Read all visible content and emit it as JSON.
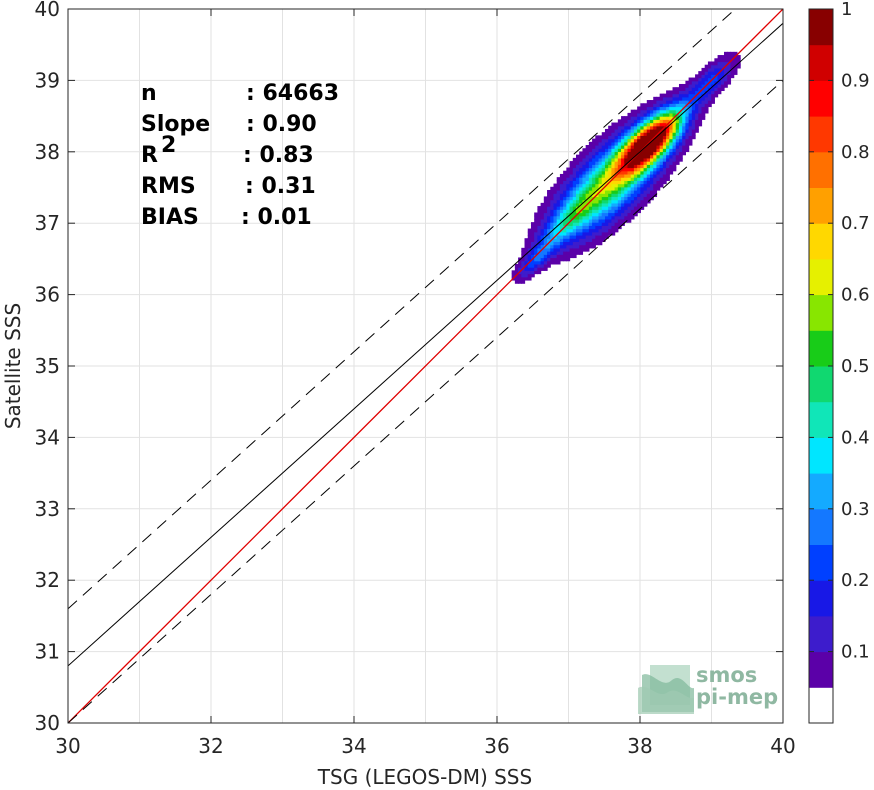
{
  "chart_data": {
    "type": "heatmap",
    "xlabel": "TSG (LEGOS-DM) SSS",
    "ylabel": "Satellite SSS",
    "xlim": [
      30,
      40
    ],
    "ylim": [
      30,
      40
    ],
    "xticks": [
      "30",
      "32",
      "34",
      "36",
      "38",
      "40"
    ],
    "yticks": [
      "30",
      "31",
      "32",
      "33",
      "34",
      "35",
      "36",
      "37",
      "38",
      "39",
      "40"
    ],
    "grid": true,
    "stats": [
      {
        "label": "n",
        "value": ": 64663"
      },
      {
        "label": "Slope",
        "value": ": 0.90"
      },
      {
        "label": "R",
        "sup": "2",
        "value": ": 0.83"
      },
      {
        "label": "RMS",
        "value": ": 0.31"
      },
      {
        "label": "BIAS",
        "value": ": 0.01"
      }
    ],
    "identity_line": {
      "slope": 1,
      "intercept": 0,
      "color": "#e00000"
    },
    "regression_line": {
      "slope": 0.9,
      "intercept": 3.8,
      "color": "#000000"
    },
    "envelope_offset": 0.8,
    "density_peaks": [
      {
        "x": 38.15,
        "y": 38.15,
        "weight": 1.0,
        "sx": 0.3,
        "sy": 0.25
      },
      {
        "x": 37.6,
        "y": 37.6,
        "weight": 0.55,
        "sx": 0.55,
        "sy": 0.45
      },
      {
        "x": 37.0,
        "y": 37.05,
        "weight": 0.22,
        "sx": 0.3,
        "sy": 0.2
      },
      {
        "x": 39.0,
        "y": 39.0,
        "weight": 0.2,
        "sx": 0.25,
        "sy": 0.2
      },
      {
        "x": 36.55,
        "y": 36.5,
        "weight": 0.18,
        "sx": 0.2,
        "sy": 0.14
      }
    ],
    "colorbar": {
      "ticks": [
        "0.1",
        "0.2",
        "0.3",
        "0.4",
        "0.5",
        "0.6",
        "0.7",
        "0.8",
        "0.9",
        "1"
      ],
      "colors": [
        "#ffffff",
        "#5b00a8",
        "#3d1ccc",
        "#1818e6",
        "#0040ff",
        "#1478ff",
        "#14aaff",
        "#00e6ff",
        "#10e6b8",
        "#10d870",
        "#18cc18",
        "#88e600",
        "#e6f000",
        "#ffd800",
        "#ffa000",
        "#ff7000",
        "#ff3800",
        "#ff0000",
        "#d00000",
        "#880000"
      ]
    }
  },
  "watermark": {
    "line1": "smos",
    "line2": "pi-mep"
  }
}
